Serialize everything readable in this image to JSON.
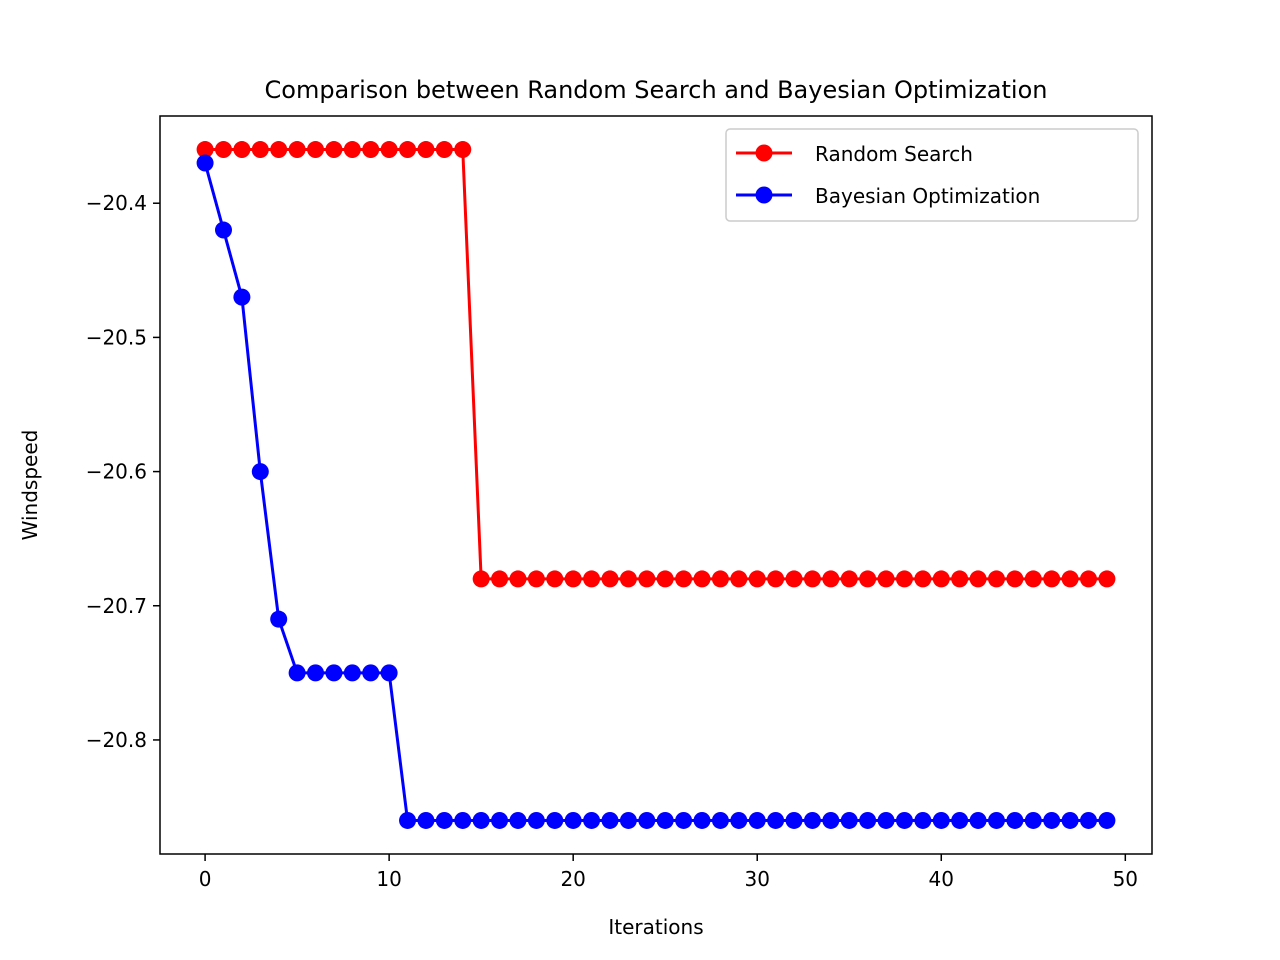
{
  "chart_data": {
    "type": "line",
    "title": "Comparison between Random Search and Bayesian Optimization",
    "xlabel": "Iterations",
    "ylabel": "Windspeed",
    "xlim": [
      -2.45,
      51.45
    ],
    "ylim": [
      -20.885,
      -20.335
    ],
    "xticks": [
      0,
      10,
      20,
      30,
      40,
      50
    ],
    "xtick_labels": [
      "0",
      "10",
      "20",
      "30",
      "40",
      "50"
    ],
    "yticks": [
      -20.4,
      -20.5,
      -20.6,
      -20.7,
      -20.8
    ],
    "ytick_labels": [
      "−20.4",
      "−20.5",
      "−20.6",
      "−20.7",
      "−20.8"
    ],
    "grid": false,
    "legend_position": "upper right",
    "x": [
      0,
      1,
      2,
      3,
      4,
      5,
      6,
      7,
      8,
      9,
      10,
      11,
      12,
      13,
      14,
      15,
      16,
      17,
      18,
      19,
      20,
      21,
      22,
      23,
      24,
      25,
      26,
      27,
      28,
      29,
      30,
      31,
      32,
      33,
      34,
      35,
      36,
      37,
      38,
      39,
      40,
      41,
      42,
      43,
      44,
      45,
      46,
      47,
      48,
      49
    ],
    "series": [
      {
        "name": "Random Search",
        "color": "#ff0000",
        "marker": "circle",
        "values": [
          -20.36,
          -20.36,
          -20.36,
          -20.36,
          -20.36,
          -20.36,
          -20.36,
          -20.36,
          -20.36,
          -20.36,
          -20.36,
          -20.36,
          -20.36,
          -20.36,
          -20.36,
          -20.68,
          -20.68,
          -20.68,
          -20.68,
          -20.68,
          -20.68,
          -20.68,
          -20.68,
          -20.68,
          -20.68,
          -20.68,
          -20.68,
          -20.68,
          -20.68,
          -20.68,
          -20.68,
          -20.68,
          -20.68,
          -20.68,
          -20.68,
          -20.68,
          -20.68,
          -20.68,
          -20.68,
          -20.68,
          -20.68,
          -20.68,
          -20.68,
          -20.68,
          -20.68,
          -20.68,
          -20.68,
          -20.68,
          -20.68,
          -20.68
        ]
      },
      {
        "name": "Bayesian Optimization",
        "color": "#0000ff",
        "marker": "circle",
        "values": [
          -20.37,
          -20.42,
          -20.47,
          -20.6,
          -20.71,
          -20.75,
          -20.75,
          -20.75,
          -20.75,
          -20.75,
          -20.75,
          -20.86,
          -20.86,
          -20.86,
          -20.86,
          -20.86,
          -20.86,
          -20.86,
          -20.86,
          -20.86,
          -20.86,
          -20.86,
          -20.86,
          -20.86,
          -20.86,
          -20.86,
          -20.86,
          -20.86,
          -20.86,
          -20.86,
          -20.86,
          -20.86,
          -20.86,
          -20.86,
          -20.86,
          -20.86,
          -20.86,
          -20.86,
          -20.86,
          -20.86,
          -20.86,
          -20.86,
          -20.86,
          -20.86,
          -20.86,
          -20.86,
          -20.86,
          -20.86,
          -20.86,
          -20.86
        ]
      }
    ]
  }
}
